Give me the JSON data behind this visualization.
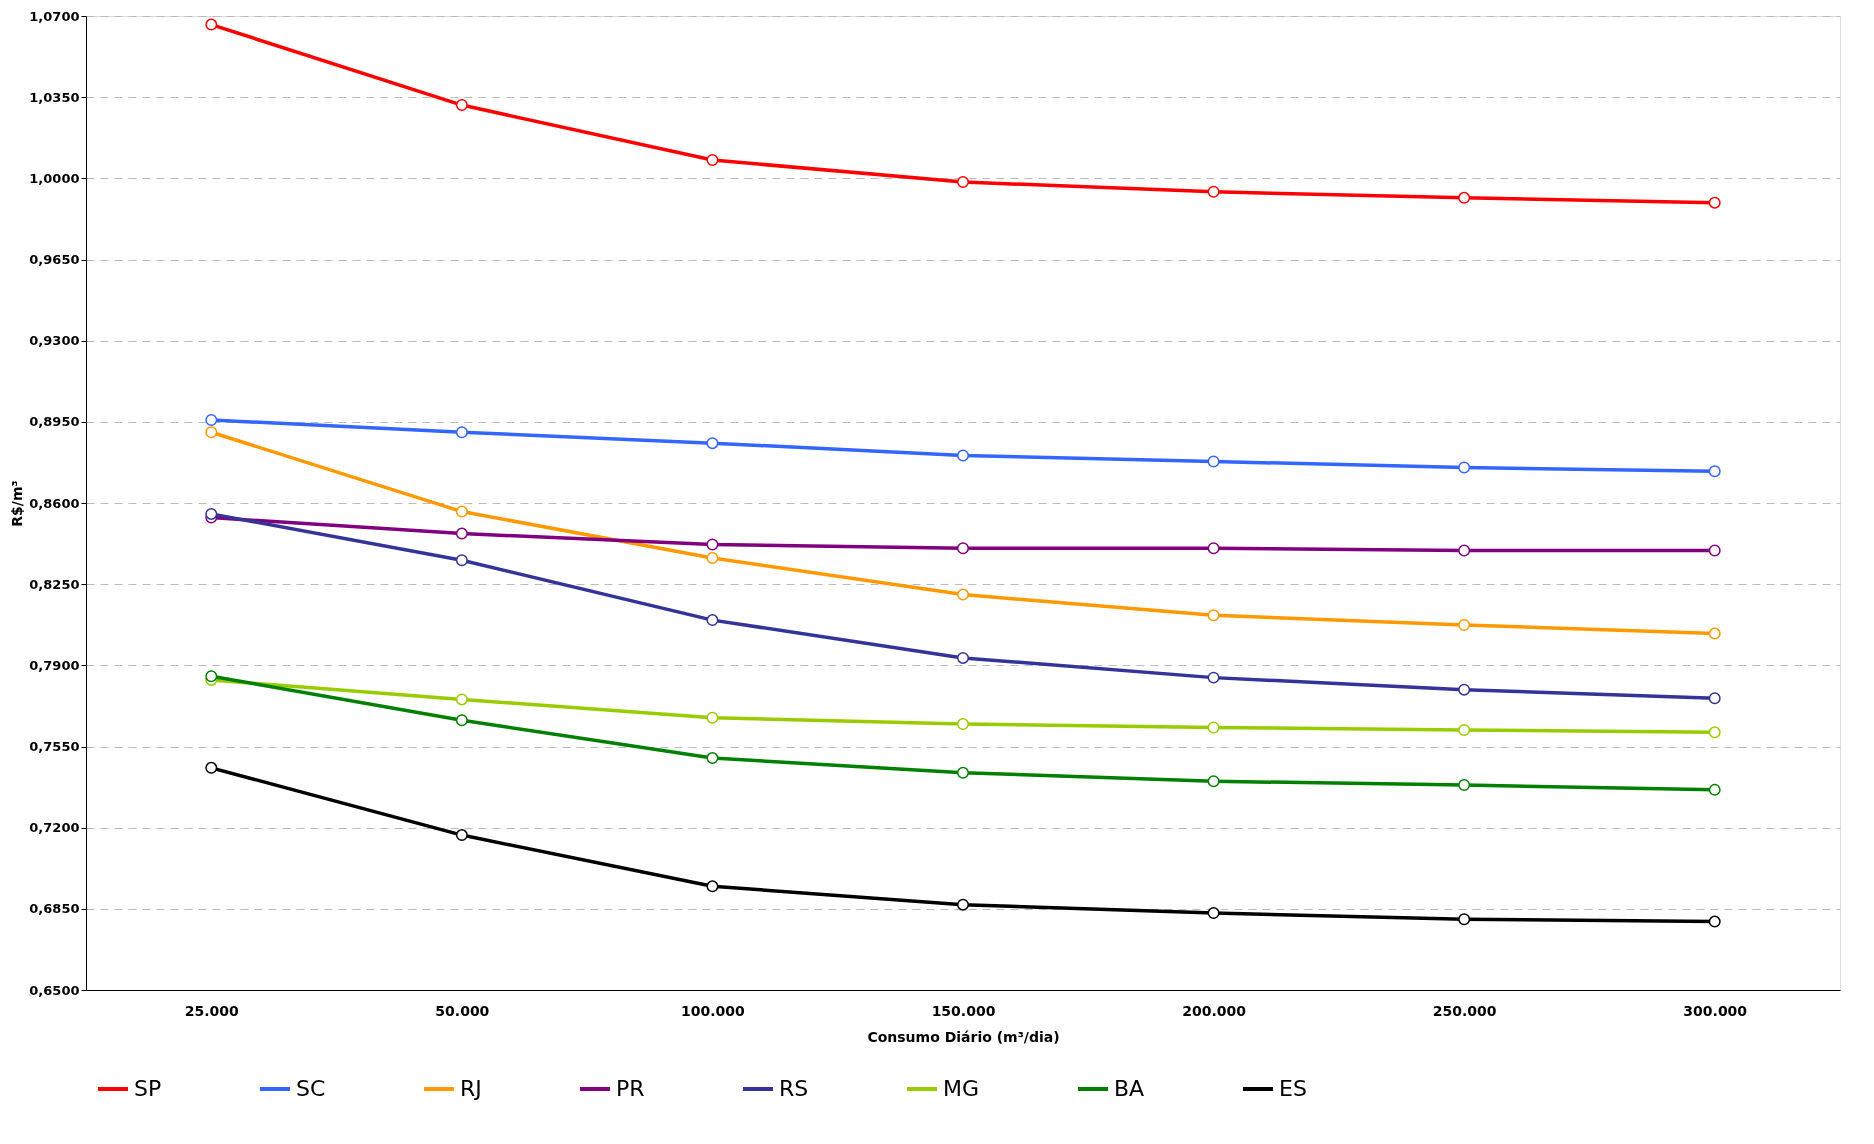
{
  "chart_data": {
    "type": "line",
    "xlabel": "Consumo Diário (m³/dia)",
    "ylabel": "R$/m³",
    "categories": [
      "25.000",
      "50.000",
      "100.000",
      "150.000",
      "200.000",
      "250.000",
      "300.000"
    ],
    "ylim": [
      0.65,
      1.07
    ],
    "yticks": [
      {
        "value": 0.65,
        "label": "0,6500"
      },
      {
        "value": 0.685,
        "label": "0,6850"
      },
      {
        "value": 0.72,
        "label": "0,7200"
      },
      {
        "value": 0.755,
        "label": "0,7550"
      },
      {
        "value": 0.79,
        "label": "0,7900"
      },
      {
        "value": 0.825,
        "label": "0,8250"
      },
      {
        "value": 0.86,
        "label": "0,8600"
      },
      {
        "value": 0.895,
        "label": "0,8950"
      },
      {
        "value": 0.93,
        "label": "0,9300"
      },
      {
        "value": 0.965,
        "label": "0,9650"
      },
      {
        "value": 1.0,
        "label": "1,0000"
      },
      {
        "value": 1.035,
        "label": "1,0350"
      },
      {
        "value": 1.07,
        "label": "1,0700"
      }
    ],
    "grid": "y",
    "legend": "bottom",
    "marker": "circle",
    "line_style": "solid",
    "series": [
      {
        "name": "SP",
        "color": "#ff0000",
        "values": [
          1.0663,
          1.0316,
          1.0079,
          0.9984,
          0.9942,
          0.9916,
          0.9895
        ]
      },
      {
        "name": "SC",
        "color": "#3366ff",
        "values": [
          0.8958,
          0.8905,
          0.8858,
          0.8805,
          0.8779,
          0.8753,
          0.8737
        ]
      },
      {
        "name": "RJ",
        "color": "#ff9900",
        "values": [
          0.8905,
          0.8563,
          0.8363,
          0.8205,
          0.8116,
          0.8074,
          0.8037
        ]
      },
      {
        "name": "PR",
        "color": "#800080",
        "values": [
          0.8537,
          0.8468,
          0.8421,
          0.8405,
          0.8405,
          0.8395,
          0.8395
        ]
      },
      {
        "name": "RS",
        "color": "#333399",
        "values": [
          0.8553,
          0.8353,
          0.8095,
          0.7932,
          0.7847,
          0.7795,
          0.7758
        ]
      },
      {
        "name": "MG",
        "color": "#99cc00",
        "values": [
          0.7837,
          0.7753,
          0.7674,
          0.7647,
          0.7632,
          0.7621,
          0.7611
        ]
      },
      {
        "name": "BA",
        "color": "#008000",
        "values": [
          0.7853,
          0.7663,
          0.75,
          0.7437,
          0.74,
          0.7384,
          0.7363
        ]
      },
      {
        "name": "ES",
        "color": "#000000",
        "values": [
          0.7458,
          0.7168,
          0.6947,
          0.6868,
          0.6832,
          0.6805,
          0.6795
        ]
      }
    ]
  }
}
